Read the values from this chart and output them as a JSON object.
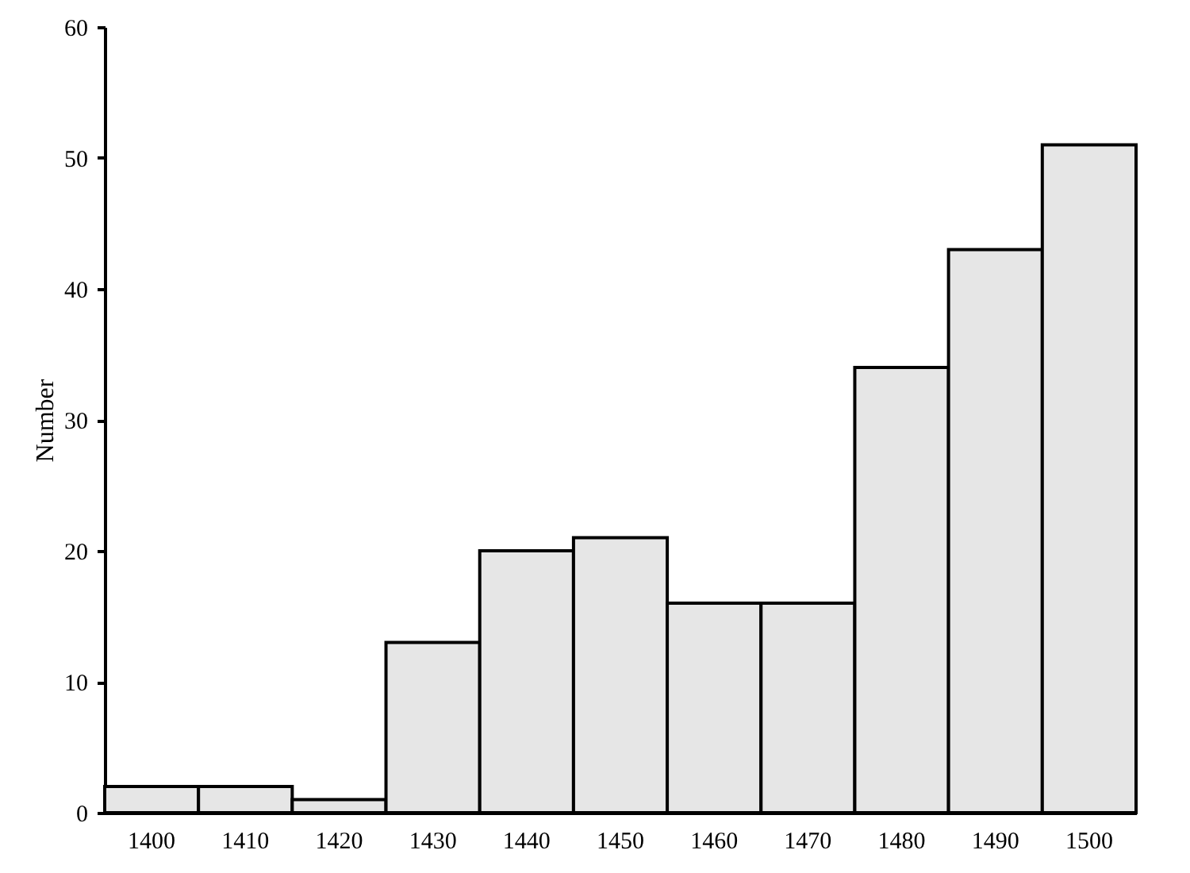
{
  "chart_data": {
    "type": "bar",
    "ylabel": "Number",
    "categories": [
      "1400",
      "1410",
      "1420",
      "1430",
      "1440",
      "1450",
      "1460",
      "1470",
      "1480",
      "1490",
      "1500"
    ],
    "values": [
      2,
      2,
      1,
      13,
      20,
      21,
      16,
      16,
      34,
      43,
      51
    ],
    "color": "#e6e6e6",
    "ylim": [
      0,
      60
    ],
    "yticks": [
      0,
      10,
      20,
      30,
      40,
      50,
      60
    ],
    "grid": false
  }
}
